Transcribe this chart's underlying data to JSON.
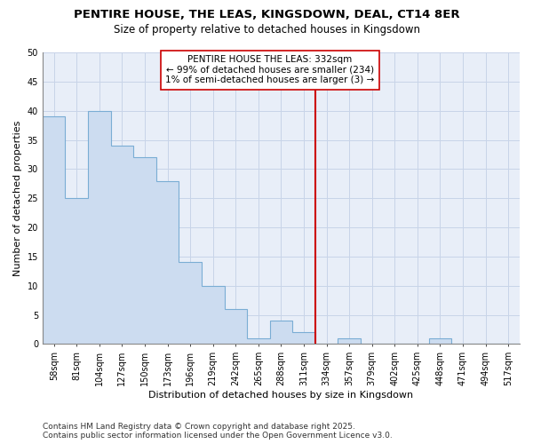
{
  "title_line1": "PENTIRE HOUSE, THE LEAS, KINGSDOWN, DEAL, CT14 8ER",
  "title_line2": "Size of property relative to detached houses in Kingsdown",
  "xlabel": "Distribution of detached houses by size in Kingsdown",
  "ylabel": "Number of detached properties",
  "bins": [
    "58sqm",
    "81sqm",
    "104sqm",
    "127sqm",
    "150sqm",
    "173sqm",
    "196sqm",
    "219sqm",
    "242sqm",
    "265sqm",
    "288sqm",
    "311sqm",
    "334sqm",
    "357sqm",
    "379sqm",
    "402sqm",
    "425sqm",
    "448sqm",
    "471sqm",
    "494sqm",
    "517sqm"
  ],
  "values": [
    39,
    25,
    40,
    34,
    32,
    28,
    14,
    10,
    6,
    1,
    4,
    2,
    0,
    1,
    0,
    0,
    0,
    1,
    0,
    0,
    0
  ],
  "bar_fill_color": "#ccdcf0",
  "bar_edge_color": "#7aadd4",
  "vline_color": "#cc0000",
  "vline_x_index": 12,
  "annotation_text": "PENTIRE HOUSE THE LEAS: 332sqm\n← 99% of detached houses are smaller (234)\n1% of semi-detached houses are larger (3) →",
  "annotation_box_facecolor": "#ffffff",
  "annotation_box_edgecolor": "#cc0000",
  "ylim": [
    0,
    50
  ],
  "yticks": [
    0,
    5,
    10,
    15,
    20,
    25,
    30,
    35,
    40,
    45,
    50
  ],
  "grid_color": "#c8d4e8",
  "plot_bg_color": "#e8eef8",
  "fig_bg_color": "#ffffff",
  "title_fontsize": 9.5,
  "subtitle_fontsize": 8.5,
  "axis_label_fontsize": 8,
  "tick_fontsize": 7,
  "annotation_fontsize": 7.5,
  "footer_fontsize": 6.5
}
